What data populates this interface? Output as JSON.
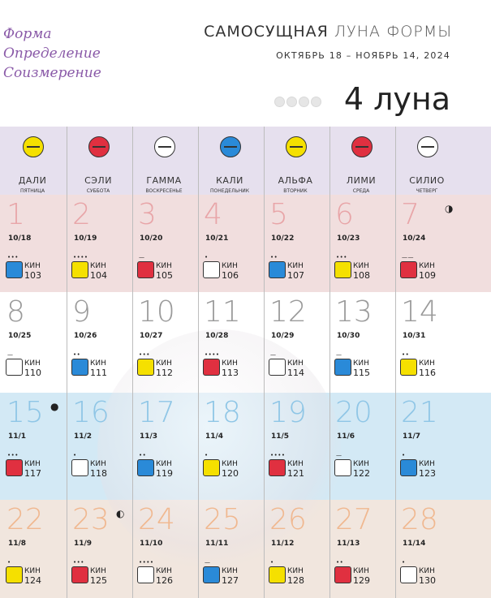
{
  "side_words": [
    "Форма",
    "Определение",
    "Соизмерение"
  ],
  "title_main": "САМОСУЩНАЯ",
  "title_rest": "ЛУНА ФОРМЫ",
  "subtitle": "ОКТЯБРЬ 18 – НОЯБРЬ 14, 2024",
  "moon_number": "4 луна",
  "plasmas": [
    {
      "name": "ДАЛИ",
      "weekday": "ПЯТНИЦА",
      "color": "#f5e000"
    },
    {
      "name": "СЭЛИ",
      "weekday": "СУББОТА",
      "color": "#e03040"
    },
    {
      "name": "ГАММА",
      "weekday": "ВОСКРЕСЕНЬЕ",
      "color": "#ffffff"
    },
    {
      "name": "КАЛИ",
      "weekday": "ПОНЕДЕЛЬНИК",
      "color": "#2a8ad8"
    },
    {
      "name": "АЛЬФА",
      "weekday": "ВТОРНИК",
      "color": "#f5e000"
    },
    {
      "name": "ЛИМИ",
      "weekday": "СРЕДА",
      "color": "#e03040"
    },
    {
      "name": "СИЛИО",
      "weekday": "ЧЕТВЕРГ",
      "color": "#ffffff"
    }
  ],
  "weeks": [
    {
      "color": "#e8a5a8",
      "days": [
        {
          "d": "1",
          "date": "10/18",
          "kin": "103",
          "dots": "•••",
          "g": "#2a8ad8"
        },
        {
          "d": "2",
          "date": "10/19",
          "kin": "104",
          "dots": "••••",
          "g": "#f5e000"
        },
        {
          "d": "3",
          "date": "10/20",
          "kin": "105",
          "dots": "—",
          "g": "#e03040"
        },
        {
          "d": "4",
          "date": "10/21",
          "kin": "106",
          "dots": "•",
          "g": "#ffffff"
        },
        {
          "d": "5",
          "date": "10/22",
          "kin": "107",
          "dots": "••",
          "g": "#2a8ad8"
        },
        {
          "d": "6",
          "date": "10/23",
          "kin": "108",
          "dots": "•••",
          "g": "#f5e000"
        },
        {
          "d": "7",
          "date": "10/24",
          "kin": "109",
          "dots": "——",
          "g": "#e03040"
        }
      ]
    },
    {
      "color": "#9a9a9a",
      "days": [
        {
          "d": "8",
          "date": "10/25",
          "kin": "110",
          "dots": "—",
          "g": "#ffffff"
        },
        {
          "d": "9",
          "date": "10/26",
          "kin": "111",
          "dots": "••",
          "g": "#2a8ad8"
        },
        {
          "d": "10",
          "date": "10/27",
          "kin": "112",
          "dots": "•••",
          "g": "#f5e000"
        },
        {
          "d": "11",
          "date": "10/28",
          "kin": "113",
          "dots": "••••",
          "g": "#e03040"
        },
        {
          "d": "12",
          "date": "10/29",
          "kin": "114",
          "dots": "—",
          "g": "#ffffff"
        },
        {
          "d": "13",
          "date": "10/30",
          "kin": "115",
          "dots": "—",
          "g": "#2a8ad8"
        },
        {
          "d": "14",
          "date": "10/31",
          "kin": "116",
          "dots": "••",
          "g": "#f5e000"
        }
      ]
    },
    {
      "color": "#8fc6e6",
      "days": [
        {
          "d": "15",
          "date": "11/1",
          "kin": "117",
          "dots": "•••",
          "g": "#e03040"
        },
        {
          "d": "16",
          "date": "11/2",
          "kin": "118",
          "dots": "•",
          "g": "#ffffff"
        },
        {
          "d": "17",
          "date": "11/3",
          "kin": "119",
          "dots": "••",
          "g": "#2a8ad8"
        },
        {
          "d": "18",
          "date": "11/4",
          "kin": "120",
          "dots": "•",
          "g": "#f5e000"
        },
        {
          "d": "19",
          "date": "11/5",
          "kin": "121",
          "dots": "••••",
          "g": "#e03040"
        },
        {
          "d": "20",
          "date": "11/6",
          "kin": "122",
          "dots": "—",
          "g": "#ffffff"
        },
        {
          "d": "21",
          "date": "11/7",
          "kin": "123",
          "dots": "•",
          "g": "#2a8ad8"
        }
      ]
    },
    {
      "color": "#f0b890",
      "days": [
        {
          "d": "22",
          "date": "11/8",
          "kin": "124",
          "dots": "•",
          "g": "#f5e000"
        },
        {
          "d": "23",
          "date": "11/9",
          "kin": "125",
          "dots": "•••",
          "g": "#e03040"
        },
        {
          "d": "24",
          "date": "11/10",
          "kin": "126",
          "dots": "••••",
          "g": "#ffffff"
        },
        {
          "d": "25",
          "date": "11/11",
          "kin": "127",
          "dots": "—",
          "g": "#2a8ad8"
        },
        {
          "d": "26",
          "date": "11/12",
          "kin": "128",
          "dots": "•",
          "g": "#f5e000"
        },
        {
          "d": "27",
          "date": "11/13",
          "kin": "129",
          "dots": "••",
          "g": "#e03040"
        },
        {
          "d": "28",
          "date": "11/14",
          "kin": "130",
          "dots": "•",
          "g": "#ffffff"
        }
      ]
    }
  ],
  "kin_label": "КИН",
  "moon_phases": [
    {
      "week": 0,
      "day": 6,
      "symbol": "◑"
    },
    {
      "week": 2,
      "day": 0,
      "symbol": "●"
    },
    {
      "week": 3,
      "day": 1,
      "symbol": "◐"
    }
  ]
}
